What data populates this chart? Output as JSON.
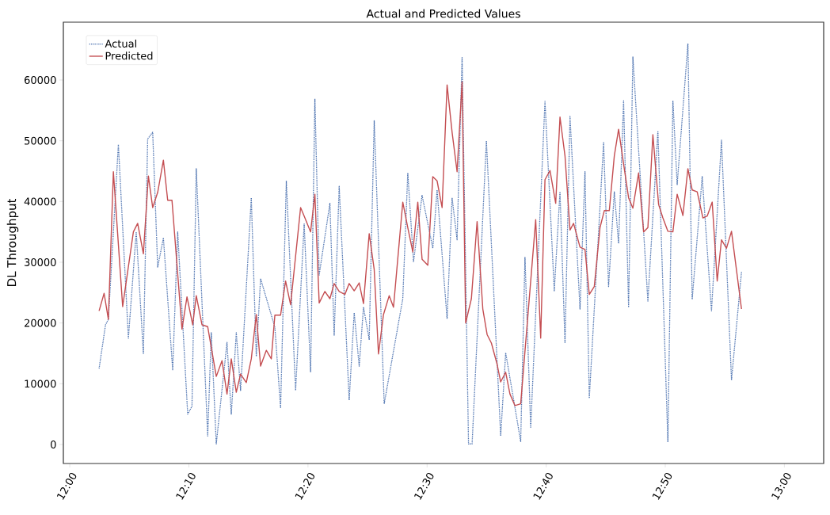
{
  "chart_data": {
    "type": "line",
    "title": "Actual and Predicted Values",
    "ylabel": "DL Throughput",
    "legend": "top left",
    "xlim": [
      11.991,
      13.055
    ],
    "ylim": [
      -3130,
      69520
    ],
    "xticks": [
      {
        "value": 12,
        "label": "12:00"
      },
      {
        "value": 12.16667,
        "label": "12:10"
      },
      {
        "value": 12.33333,
        "label": "12:20"
      },
      {
        "value": 12.5,
        "label": "12:30"
      },
      {
        "value": 12.66667,
        "label": "12:40"
      },
      {
        "value": 12.83333,
        "label": "12:50"
      },
      {
        "value": 13,
        "label": "13:00"
      }
    ],
    "yticks": [
      0,
      10000,
      20000,
      30000,
      40000,
      50000,
      60000
    ],
    "series": [
      {
        "name": "Actual",
        "color": "#4c72b0",
        "line_style": "dotted",
        "x": [
          12.041,
          12.05,
          12.054,
          12.068,
          12.082,
          12.093,
          12.103,
          12.109,
          12.116,
          12.123,
          12.131,
          12.144,
          12.151,
          12.165,
          12.171,
          12.177,
          12.193,
          12.198,
          12.205,
          12.22,
          12.226,
          12.233,
          12.239,
          12.254,
          12.261,
          12.267,
          12.287,
          12.295,
          12.303,
          12.316,
          12.328,
          12.337,
          12.343,
          12.349,
          12.364,
          12.37,
          12.377,
          12.391,
          12.398,
          12.405,
          12.411,
          12.419,
          12.426,
          12.44,
          12.466,
          12.473,
          12.481,
          12.493,
          12.508,
          12.514,
          12.528,
          12.535,
          12.542,
          12.549,
          12.558,
          12.563,
          12.583,
          12.603,
          12.61,
          12.631,
          12.637,
          12.645,
          12.665,
          12.678,
          12.686,
          12.693,
          12.7,
          12.714,
          12.721,
          12.727,
          12.747,
          12.754,
          12.762,
          12.768,
          12.775,
          12.782,
          12.788,
          12.809,
          12.823,
          12.837,
          12.844,
          12.85,
          12.865,
          12.871,
          12.885,
          12.898,
          12.912,
          12.926,
          12.94
        ],
        "values": [
          12500,
          19700,
          20600,
          49400,
          17500,
          35000,
          14900,
          50300,
          51400,
          29200,
          34000,
          12300,
          35000,
          5000,
          6300,
          45400,
          1400,
          18400,
          100,
          16800,
          5000,
          18400,
          8900,
          40600,
          14500,
          27300,
          19300,
          6000,
          43400,
          8900,
          36300,
          11900,
          56900,
          27900,
          39700,
          18000,
          42500,
          7300,
          21700,
          12900,
          22600,
          17300,
          53300,
          6700,
          24000,
          44700,
          30100,
          41000,
          32300,
          41900,
          20700,
          40600,
          33700,
          63700,
          100,
          100,
          50000,
          1400,
          15100,
          500,
          30800,
          2700,
          56500,
          25300,
          41600,
          16700,
          54000,
          22300,
          44900,
          7600,
          49700,
          26000,
          41600,
          33100,
          56600,
          22600,
          63800,
          23600,
          51600,
          400,
          56600,
          42800,
          66000,
          23900,
          44100,
          22000,
          50100,
          10600,
          28400
        ]
      },
      {
        "name": "Predicted",
        "color": "#c44e52",
        "line_style": "solid",
        "x": [
          12.041,
          12.048,
          12.054,
          12.061,
          12.074,
          12.089,
          12.095,
          12.103,
          12.11,
          12.116,
          12.123,
          12.131,
          12.137,
          12.143,
          12.157,
          12.164,
          12.172,
          12.177,
          12.185,
          12.193,
          12.205,
          12.213,
          12.22,
          12.226,
          12.233,
          12.239,
          12.247,
          12.254,
          12.261,
          12.267,
          12.275,
          12.282,
          12.287,
          12.295,
          12.302,
          12.309,
          12.323,
          12.328,
          12.337,
          12.343,
          12.349,
          12.357,
          12.364,
          12.37,
          12.377,
          12.385,
          12.391,
          12.398,
          12.405,
          12.411,
          12.419,
          12.426,
          12.432,
          12.439,
          12.447,
          12.453,
          12.466,
          12.473,
          12.48,
          12.487,
          12.493,
          12.501,
          12.508,
          12.514,
          12.521,
          12.528,
          12.535,
          12.542,
          12.549,
          12.554,
          12.562,
          12.57,
          12.578,
          12.584,
          12.59,
          12.598,
          12.603,
          12.61,
          12.616,
          12.623,
          12.631,
          12.652,
          12.659,
          12.665,
          12.672,
          12.68,
          12.686,
          12.693,
          12.7,
          12.705,
          12.714,
          12.721,
          12.727,
          12.734,
          12.742,
          12.748,
          12.755,
          12.762,
          12.768,
          12.775,
          12.782,
          12.788,
          12.796,
          12.803,
          12.809,
          12.816,
          12.824,
          12.83,
          12.837,
          12.844,
          12.85,
          12.858,
          12.865,
          12.871,
          12.878,
          12.886,
          12.892,
          12.899,
          12.906,
          12.912,
          12.919,
          12.926,
          12.94
        ],
        "values": [
          22000,
          24900,
          20600,
          44900,
          22700,
          35000,
          36400,
          31400,
          44200,
          39000,
          41500,
          46800,
          40200,
          40200,
          19000,
          24300,
          19700,
          24500,
          19700,
          19400,
          11200,
          13800,
          8300,
          14100,
          8600,
          11600,
          10200,
          14100,
          21400,
          12900,
          15500,
          14100,
          21300,
          21300,
          26900,
          23000,
          39000,
          37600,
          35000,
          41200,
          23300,
          25200,
          24000,
          26500,
          25200,
          24700,
          26500,
          25300,
          26600,
          23200,
          34700,
          28800,
          14900,
          21400,
          24500,
          22600,
          39900,
          35700,
          31700,
          39900,
          30500,
          29500,
          44100,
          43400,
          39000,
          59200,
          51400,
          44900,
          59700,
          20000,
          24000,
          36700,
          22300,
          18100,
          16700,
          13200,
          10300,
          11900,
          8300,
          6400,
          6700,
          37000,
          17500,
          43600,
          45100,
          39700,
          53900,
          47500,
          35300,
          36400,
          32500,
          32100,
          24700,
          26000,
          35700,
          38500,
          38500,
          47500,
          51900,
          46200,
          40600,
          38900,
          44700,
          35000,
          35700,
          51000,
          39500,
          37300,
          35100,
          35000,
          41200,
          37700,
          45400,
          41900,
          41600,
          37300,
          37600,
          39900,
          26900,
          33700,
          32300,
          35100,
          22300
        ]
      }
    ]
  }
}
